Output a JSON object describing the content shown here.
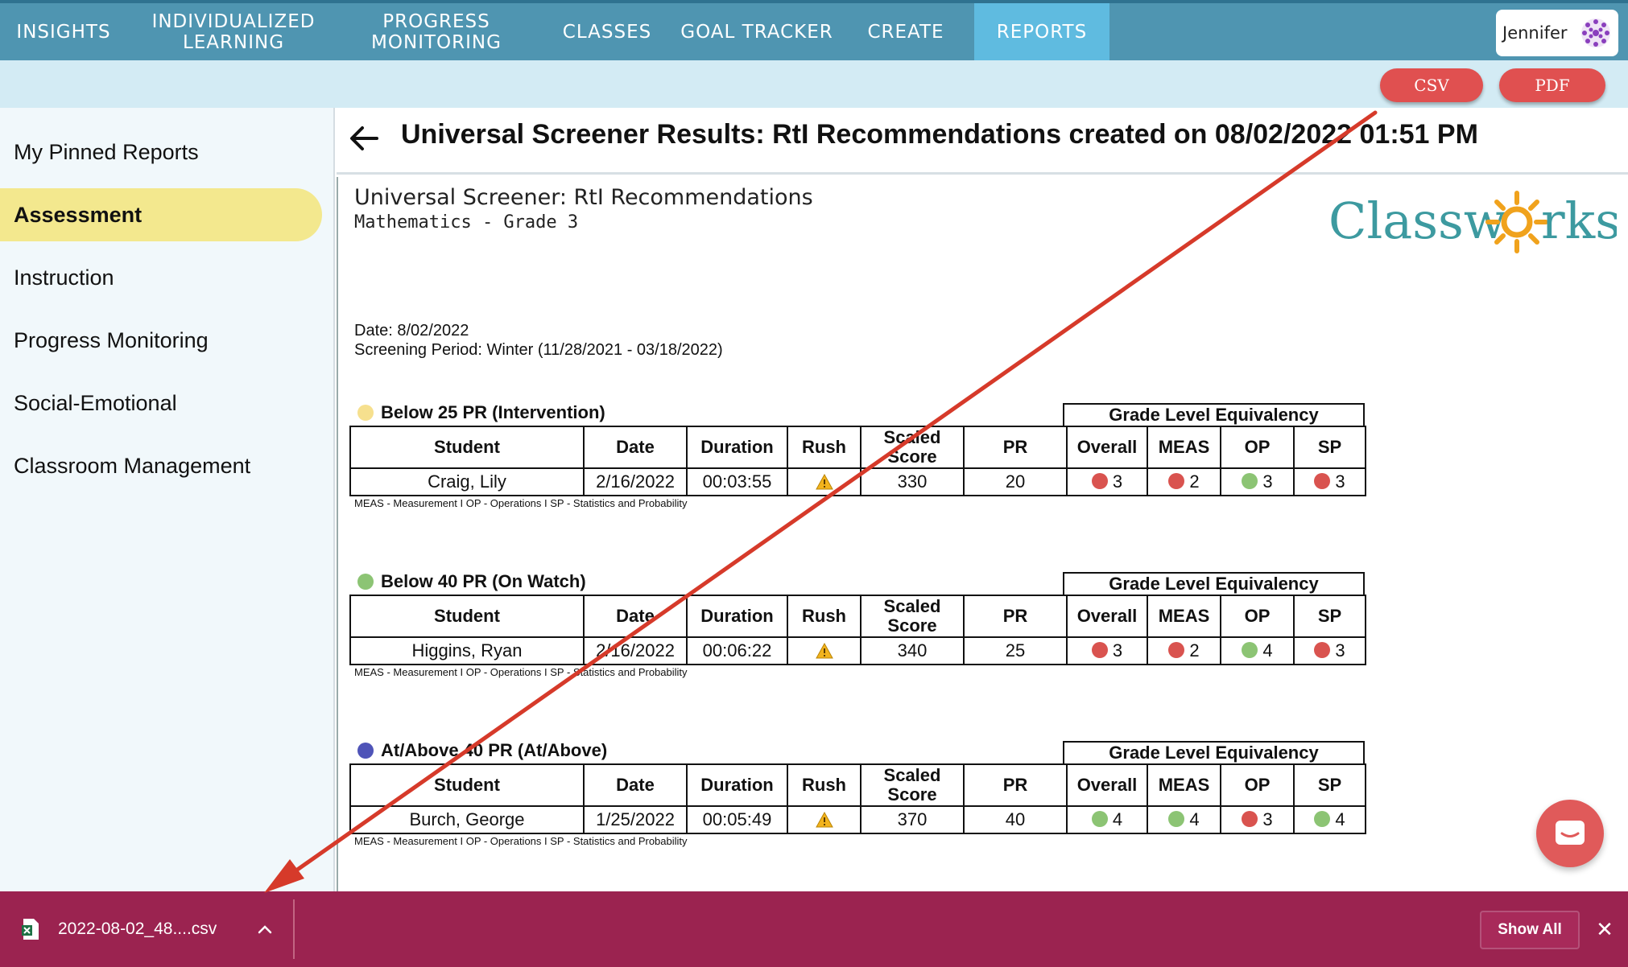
{
  "nav": {
    "items": [
      {
        "label": "INSIGHTS"
      },
      {
        "label": "INDIVIDUALIZED LEARNING"
      },
      {
        "label": "PROGRESS MONITORING"
      },
      {
        "label": "CLASSES"
      },
      {
        "label": "GOAL TRACKER"
      },
      {
        "label": "CREATE"
      },
      {
        "label": "REPORTS"
      }
    ],
    "active": "REPORTS",
    "user_name": "Jennifer"
  },
  "actions": {
    "csv_label": "CSV",
    "pdf_label": "PDF"
  },
  "sidebar": {
    "items": [
      {
        "label": "My Pinned Reports"
      },
      {
        "label": "Assessment"
      },
      {
        "label": "Instruction"
      },
      {
        "label": "Progress Monitoring"
      },
      {
        "label": "Social-Emotional"
      },
      {
        "label": "Classroom Management"
      }
    ],
    "active": "Assessment"
  },
  "report": {
    "title": "Universal Screener Results: RtI Recommendations created on 08/02/2022 01:51 PM",
    "doc_title": "Universal Screener: RtI Recommendations",
    "doc_subtitle": "Mathematics - Grade 3",
    "logo_text_left": "Classw",
    "logo_text_right": "rks",
    "date_line": "Date: 8/02/2022",
    "period_line": "Screening Period: Winter (11/28/2021 - 03/18/2022)",
    "gle_header": "Grade Level Equivalency",
    "columns": [
      "Student",
      "Date",
      "Duration",
      "Rush",
      "Scaled Score",
      "PR",
      "Overall",
      "MEAS",
      "OP",
      "SP"
    ],
    "legend_note": "MEAS - Measurement I OP - Operations I SP - Statistics and Probability",
    "sections": [
      {
        "label": "Below 25 PR (Intervention)",
        "dot_color": "#f6e08e",
        "rows": [
          {
            "student": "Craig, Lily",
            "date": "2/16/2022",
            "duration": "00:03:55",
            "scaled": "330",
            "pr": "20",
            "overall": "3",
            "overall_color": "#d9534f",
            "meas": "2",
            "meas_color": "#d9534f",
            "op": "3",
            "op_color": "#8cc474",
            "sp": "3",
            "sp_color": "#d9534f"
          }
        ]
      },
      {
        "label": "Below 40 PR (On Watch)",
        "dot_color": "#8cc474",
        "rows": [
          {
            "student": "Higgins, Ryan",
            "date": "2/16/2022",
            "duration": "00:06:22",
            "scaled": "340",
            "pr": "25",
            "overall": "3",
            "overall_color": "#d9534f",
            "meas": "2",
            "meas_color": "#d9534f",
            "op": "4",
            "op_color": "#8cc474",
            "sp": "3",
            "sp_color": "#d9534f"
          }
        ]
      },
      {
        "label": "At/Above 40 PR (At/Above)",
        "dot_color": "#4f54b8",
        "rows": [
          {
            "student": "Burch, George",
            "date": "1/25/2022",
            "duration": "00:05:49",
            "scaled": "370",
            "pr": "40",
            "overall": "4",
            "overall_color": "#8cc474",
            "meas": "4",
            "meas_color": "#8cc474",
            "op": "3",
            "op_color": "#d9534f",
            "sp": "4",
            "sp_color": "#8cc474"
          }
        ]
      }
    ]
  },
  "download": {
    "filename": "2022-08-02_48....csv",
    "show_all_label": "Show All",
    "close_glyph": "✕"
  },
  "icons": {
    "back": "arrow-left-icon",
    "rush": "warning-icon",
    "chat": "chat-icon",
    "excel": "excel-file-icon",
    "avatar": "user-avatar-icon"
  },
  "colors": {
    "nav_bg": "#4f95b1",
    "nav_active": "#5fbbe0",
    "sidebar_active": "#f3e88e",
    "button_red": "#e05050",
    "download_bar": "#9b2350",
    "annotation_arrow": "#d63a2a"
  }
}
